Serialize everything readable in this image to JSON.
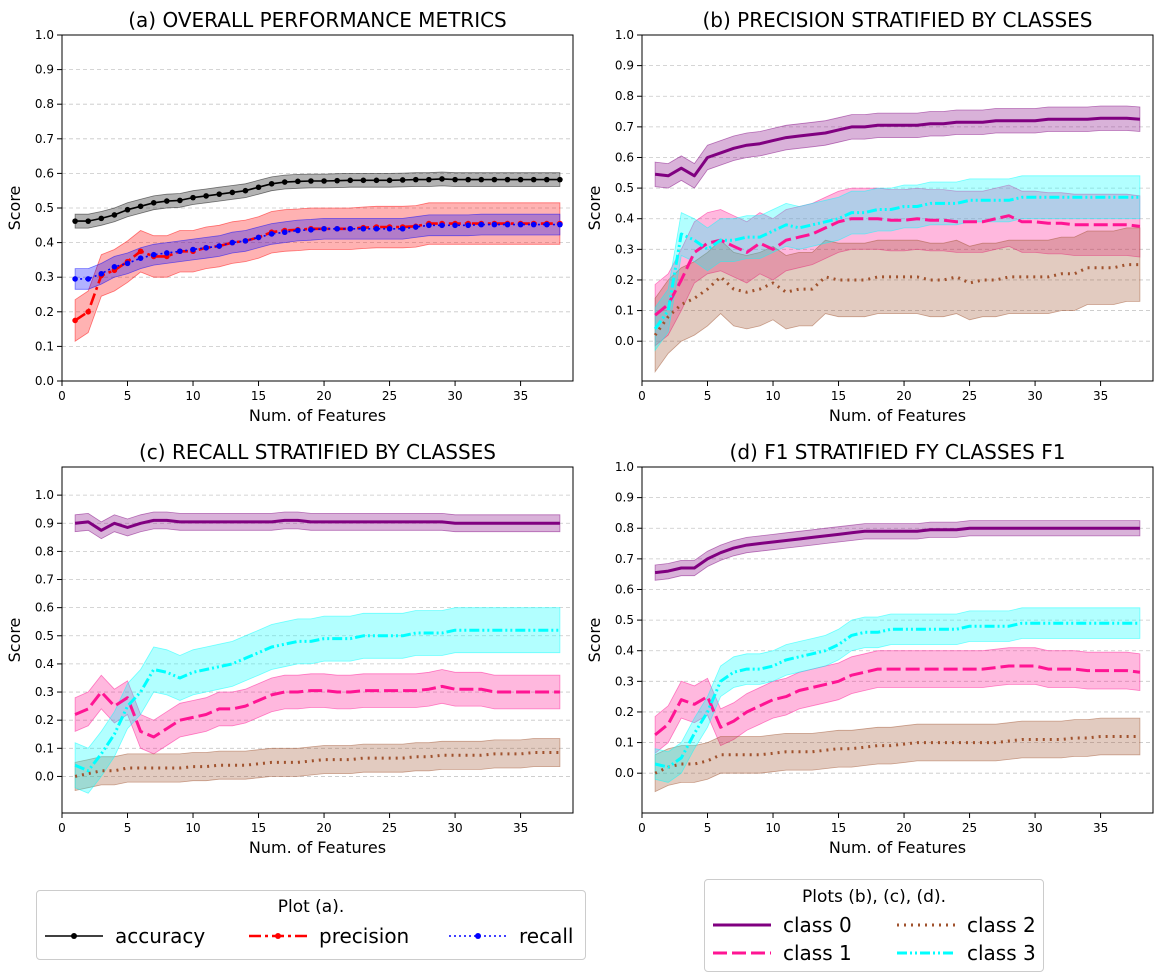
{
  "chart_data": [
    {
      "type": "line",
      "title": "(a) OVERALL PERFORMANCE METRICS",
      "xlabel": "Num. of Features",
      "ylabel": "Score",
      "xlim": [
        0,
        39
      ],
      "ylim": [
        0.0,
        1.0
      ],
      "xticks": [
        "0",
        "5",
        "10",
        "15",
        "20",
        "25",
        "30",
        "35"
      ],
      "yticks": [
        "0.0",
        "0.1",
        "0.2",
        "0.3",
        "0.4",
        "0.5",
        "0.6",
        "0.7",
        "0.8",
        "0.9",
        "1.0"
      ],
      "grid": "horizontal dashed",
      "x": [
        1,
        2,
        3,
        4,
        5,
        6,
        7,
        8,
        9,
        10,
        11,
        12,
        13,
        14,
        15,
        16,
        17,
        18,
        19,
        20,
        21,
        22,
        23,
        24,
        25,
        26,
        27,
        28,
        29,
        30,
        31,
        32,
        33,
        34,
        35,
        36,
        37,
        38
      ],
      "series": [
        {
          "name": "accuracy",
          "color": "#000000",
          "style": "solid-dot",
          "band": 0.02,
          "values": [
            0.462,
            0.462,
            0.47,
            0.48,
            0.495,
            0.505,
            0.515,
            0.52,
            0.522,
            0.53,
            0.535,
            0.54,
            0.545,
            0.55,
            0.56,
            0.57,
            0.575,
            0.577,
            0.578,
            0.578,
            0.579,
            0.58,
            0.58,
            0.58,
            0.58,
            0.581,
            0.582,
            0.582,
            0.584,
            0.582,
            0.582,
            0.582,
            0.582,
            0.582,
            0.582,
            0.582,
            0.582,
            0.582
          ]
        },
        {
          "name": "precision",
          "color": "#ff0000",
          "style": "dashdot-dot",
          "band": 0.06,
          "values": [
            0.175,
            0.2,
            0.305,
            0.32,
            0.345,
            0.375,
            0.36,
            0.36,
            0.375,
            0.375,
            0.385,
            0.39,
            0.4,
            0.405,
            0.415,
            0.43,
            0.435,
            0.437,
            0.44,
            0.44,
            0.44,
            0.44,
            0.443,
            0.445,
            0.445,
            0.445,
            0.447,
            0.455,
            0.455,
            0.455,
            0.455,
            0.455,
            0.455,
            0.455,
            0.455,
            0.455,
            0.455,
            0.455
          ]
        },
        {
          "name": "recall",
          "color": "#0000ff",
          "style": "dotted-dot",
          "band": 0.03,
          "values": [
            0.295,
            0.295,
            0.31,
            0.33,
            0.34,
            0.355,
            0.365,
            0.37,
            0.375,
            0.38,
            0.385,
            0.39,
            0.4,
            0.405,
            0.415,
            0.425,
            0.43,
            0.435,
            0.437,
            0.44,
            0.44,
            0.44,
            0.44,
            0.44,
            0.44,
            0.44,
            0.445,
            0.45,
            0.45,
            0.45,
            0.45,
            0.452,
            0.452,
            0.452,
            0.452,
            0.452,
            0.452,
            0.452
          ]
        }
      ]
    },
    {
      "type": "line",
      "title": "(b) PRECISION STRATIFIED BY CLASSES",
      "xlabel": "Num. of Features",
      "ylabel": "Score",
      "xlim": [
        0,
        39
      ],
      "ylim": [
        -0.13,
        1.0
      ],
      "xticks": [
        "0",
        "5",
        "10",
        "15",
        "20",
        "25",
        "30",
        "35"
      ],
      "yticks": [
        "0.0",
        "0.1",
        "0.2",
        "0.3",
        "0.4",
        "0.5",
        "0.6",
        "0.7",
        "0.8",
        "0.9",
        "1.0"
      ],
      "grid": "horizontal dashed",
      "x": [
        1,
        2,
        3,
        4,
        5,
        6,
        7,
        8,
        9,
        10,
        11,
        12,
        13,
        14,
        15,
        16,
        17,
        18,
        19,
        20,
        21,
        22,
        23,
        24,
        25,
        26,
        27,
        28,
        29,
        30,
        31,
        32,
        33,
        34,
        35,
        36,
        37,
        38
      ],
      "series": [
        {
          "name": "class 0",
          "color": "#800080",
          "band": 0.04,
          "values": [
            0.545,
            0.54,
            0.565,
            0.54,
            0.6,
            0.615,
            0.63,
            0.64,
            0.645,
            0.655,
            0.665,
            0.67,
            0.675,
            0.68,
            0.69,
            0.7,
            0.7,
            0.705,
            0.705,
            0.705,
            0.705,
            0.71,
            0.71,
            0.715,
            0.715,
            0.715,
            0.72,
            0.72,
            0.72,
            0.72,
            0.725,
            0.725,
            0.725,
            0.725,
            0.728,
            0.728,
            0.728,
            0.725
          ]
        },
        {
          "name": "class 1",
          "color": "#ff1493",
          "band": 0.1,
          "values": [
            0.085,
            0.12,
            0.2,
            0.29,
            0.32,
            0.33,
            0.31,
            0.29,
            0.32,
            0.3,
            0.33,
            0.34,
            0.35,
            0.37,
            0.39,
            0.4,
            0.4,
            0.4,
            0.395,
            0.395,
            0.4,
            0.395,
            0.395,
            0.39,
            0.39,
            0.39,
            0.4,
            0.41,
            0.39,
            0.39,
            0.385,
            0.385,
            0.38,
            0.38,
            0.38,
            0.38,
            0.38,
            0.375
          ]
        },
        {
          "name": "class 2",
          "color": "#a0522d",
          "band": 0.12,
          "values": [
            0.02,
            0.08,
            0.12,
            0.14,
            0.17,
            0.21,
            0.17,
            0.16,
            0.17,
            0.19,
            0.16,
            0.17,
            0.17,
            0.21,
            0.2,
            0.2,
            0.2,
            0.21,
            0.21,
            0.21,
            0.21,
            0.2,
            0.2,
            0.21,
            0.19,
            0.2,
            0.2,
            0.21,
            0.21,
            0.21,
            0.21,
            0.22,
            0.22,
            0.24,
            0.24,
            0.24,
            0.25,
            0.25
          ]
        },
        {
          "name": "class 3",
          "color": "#00ffff",
          "band": 0.07,
          "values": [
            0.04,
            0.1,
            0.35,
            0.33,
            0.3,
            0.33,
            0.33,
            0.34,
            0.34,
            0.36,
            0.38,
            0.37,
            0.38,
            0.39,
            0.4,
            0.42,
            0.42,
            0.43,
            0.43,
            0.44,
            0.44,
            0.45,
            0.45,
            0.45,
            0.46,
            0.46,
            0.46,
            0.46,
            0.47,
            0.47,
            0.47,
            0.47,
            0.47,
            0.47,
            0.47,
            0.47,
            0.47,
            0.47
          ]
        }
      ]
    },
    {
      "type": "line",
      "title": "(c) RECALL STRATIFIED BY CLASSES",
      "xlabel": "Num. of Features",
      "ylabel": "Score",
      "xlim": [
        0,
        39
      ],
      "ylim": [
        -0.13,
        1.1
      ],
      "xticks": [
        "0",
        "5",
        "10",
        "15",
        "20",
        "25",
        "30",
        "35"
      ],
      "yticks": [
        "0.0",
        "0.1",
        "0.2",
        "0.3",
        "0.4",
        "0.5",
        "0.6",
        "0.7",
        "0.8",
        "0.9",
        "1.0"
      ],
      "grid": "horizontal dashed",
      "x": [
        1,
        2,
        3,
        4,
        5,
        6,
        7,
        8,
        9,
        10,
        11,
        12,
        13,
        14,
        15,
        16,
        17,
        18,
        19,
        20,
        21,
        22,
        23,
        24,
        25,
        26,
        27,
        28,
        29,
        30,
        31,
        32,
        33,
        34,
        35,
        36,
        37,
        38
      ],
      "series": [
        {
          "name": "class 0",
          "color": "#800080",
          "band": 0.03,
          "values": [
            0.9,
            0.905,
            0.875,
            0.9,
            0.885,
            0.9,
            0.91,
            0.91,
            0.905,
            0.905,
            0.905,
            0.905,
            0.905,
            0.905,
            0.905,
            0.905,
            0.91,
            0.91,
            0.905,
            0.905,
            0.905,
            0.905,
            0.905,
            0.905,
            0.905,
            0.905,
            0.905,
            0.905,
            0.905,
            0.9,
            0.9,
            0.9,
            0.9,
            0.9,
            0.9,
            0.9,
            0.9,
            0.9
          ]
        },
        {
          "name": "class 1",
          "color": "#ff1493",
          "band": 0.06,
          "values": [
            0.22,
            0.24,
            0.3,
            0.25,
            0.28,
            0.16,
            0.14,
            0.17,
            0.2,
            0.21,
            0.22,
            0.24,
            0.24,
            0.25,
            0.27,
            0.29,
            0.3,
            0.3,
            0.305,
            0.305,
            0.3,
            0.3,
            0.305,
            0.305,
            0.305,
            0.305,
            0.305,
            0.31,
            0.32,
            0.31,
            0.31,
            0.31,
            0.3,
            0.3,
            0.3,
            0.3,
            0.3,
            0.3
          ]
        },
        {
          "name": "class 2",
          "color": "#a0522d",
          "band": 0.05,
          "values": [
            0.0,
            0.01,
            0.02,
            0.02,
            0.03,
            0.03,
            0.03,
            0.03,
            0.03,
            0.035,
            0.035,
            0.04,
            0.04,
            0.04,
            0.045,
            0.05,
            0.05,
            0.05,
            0.055,
            0.06,
            0.06,
            0.06,
            0.065,
            0.065,
            0.065,
            0.065,
            0.07,
            0.07,
            0.075,
            0.075,
            0.075,
            0.075,
            0.08,
            0.08,
            0.08,
            0.085,
            0.085,
            0.085
          ]
        },
        {
          "name": "class 3",
          "color": "#00ffff",
          "band": 0.08,
          "values": [
            0.04,
            0.02,
            0.08,
            0.15,
            0.25,
            0.3,
            0.38,
            0.37,
            0.35,
            0.37,
            0.38,
            0.39,
            0.4,
            0.42,
            0.44,
            0.46,
            0.47,
            0.48,
            0.48,
            0.49,
            0.49,
            0.49,
            0.5,
            0.5,
            0.5,
            0.5,
            0.51,
            0.51,
            0.51,
            0.52,
            0.52,
            0.52,
            0.52,
            0.52,
            0.52,
            0.52,
            0.52,
            0.52
          ]
        }
      ]
    },
    {
      "type": "line",
      "title": "(d) F1 STRATIFIED FY CLASSES F1",
      "xlabel": "Num. of Features",
      "ylabel": "Score",
      "xlim": [
        0,
        39
      ],
      "ylim": [
        -0.13,
        1.0
      ],
      "xticks": [
        "0",
        "5",
        "10",
        "15",
        "20",
        "25",
        "30",
        "35"
      ],
      "yticks": [
        "0.0",
        "0.1",
        "0.2",
        "0.3",
        "0.4",
        "0.5",
        "0.6",
        "0.7",
        "0.8",
        "0.9",
        "1.0"
      ],
      "grid": "horizontal dashed",
      "x": [
        1,
        2,
        3,
        4,
        5,
        6,
        7,
        8,
        9,
        10,
        11,
        12,
        13,
        14,
        15,
        16,
        17,
        18,
        19,
        20,
        21,
        22,
        23,
        24,
        25,
        26,
        27,
        28,
        29,
        30,
        31,
        32,
        33,
        34,
        35,
        36,
        37,
        38
      ],
      "series": [
        {
          "name": "class 0",
          "color": "#800080",
          "band": 0.025,
          "values": [
            0.655,
            0.66,
            0.67,
            0.67,
            0.7,
            0.72,
            0.735,
            0.745,
            0.75,
            0.755,
            0.76,
            0.765,
            0.77,
            0.775,
            0.78,
            0.785,
            0.79,
            0.79,
            0.79,
            0.79,
            0.79,
            0.795,
            0.795,
            0.795,
            0.8,
            0.8,
            0.8,
            0.8,
            0.8,
            0.8,
            0.8,
            0.8,
            0.8,
            0.8,
            0.8,
            0.8,
            0.8,
            0.8
          ]
        },
        {
          "name": "class 1",
          "color": "#ff1493",
          "band": 0.06,
          "values": [
            0.125,
            0.16,
            0.24,
            0.225,
            0.25,
            0.15,
            0.17,
            0.2,
            0.22,
            0.24,
            0.25,
            0.27,
            0.28,
            0.29,
            0.3,
            0.32,
            0.33,
            0.34,
            0.34,
            0.34,
            0.34,
            0.34,
            0.34,
            0.34,
            0.34,
            0.34,
            0.345,
            0.35,
            0.35,
            0.35,
            0.34,
            0.34,
            0.34,
            0.335,
            0.335,
            0.335,
            0.335,
            0.33
          ]
        },
        {
          "name": "class 2",
          "color": "#a0522d",
          "band": 0.06,
          "values": [
            0.0,
            0.02,
            0.03,
            0.03,
            0.04,
            0.06,
            0.06,
            0.06,
            0.06,
            0.065,
            0.07,
            0.07,
            0.07,
            0.075,
            0.08,
            0.08,
            0.085,
            0.09,
            0.09,
            0.095,
            0.1,
            0.1,
            0.1,
            0.1,
            0.1,
            0.1,
            0.1,
            0.105,
            0.11,
            0.11,
            0.11,
            0.11,
            0.115,
            0.115,
            0.12,
            0.12,
            0.12,
            0.12
          ]
        },
        {
          "name": "class 3",
          "color": "#00ffff",
          "band": 0.05,
          "values": [
            0.03,
            0.02,
            0.05,
            0.13,
            0.2,
            0.3,
            0.33,
            0.34,
            0.34,
            0.35,
            0.37,
            0.38,
            0.39,
            0.4,
            0.42,
            0.45,
            0.46,
            0.46,
            0.47,
            0.47,
            0.47,
            0.47,
            0.47,
            0.47,
            0.48,
            0.48,
            0.48,
            0.48,
            0.49,
            0.49,
            0.49,
            0.49,
            0.49,
            0.49,
            0.49,
            0.49,
            0.49,
            0.49
          ]
        }
      ]
    }
  ],
  "legend_a": {
    "title": "Plot (a).",
    "entries": [
      {
        "label": "accuracy",
        "color": "#000000"
      },
      {
        "label": "precision",
        "color": "#ff0000"
      },
      {
        "label": "recall",
        "color": "#0000ff"
      }
    ]
  },
  "legend_bcd": {
    "title": "Plots (b), (c), (d).",
    "entries": [
      {
        "label": "class 0",
        "color": "#800080"
      },
      {
        "label": "class 1",
        "color": "#ff1493"
      },
      {
        "label": "class 2",
        "color": "#a0522d"
      },
      {
        "label": "class 3",
        "color": "#00ffff"
      }
    ]
  }
}
